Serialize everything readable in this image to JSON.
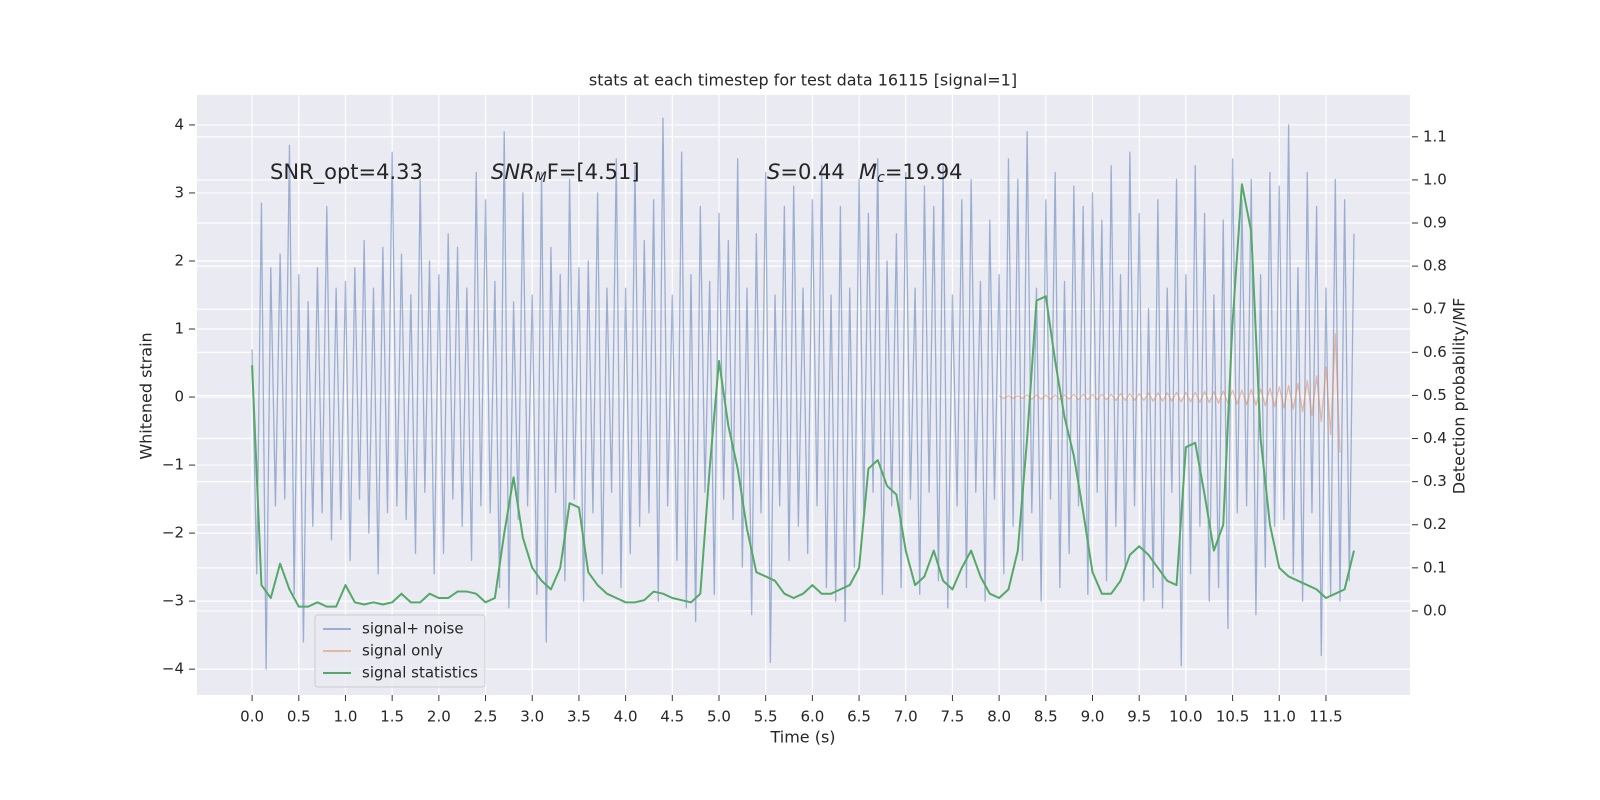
{
  "chart_data": {
    "type": "line",
    "title": "stats at each timestep for test data 16115 [signal=1]",
    "xlabel": "Time (s)",
    "ylabel": "Whitened strain",
    "y2label": "Detection probability/MF",
    "annotations": [
      {
        "text": "SNR_opt=4.33"
      },
      {
        "main": "SNR",
        "sub": "M",
        "rest": "F=[4.51]"
      },
      {
        "main": "S",
        "rest": "=0.44"
      },
      {
        "main": "M",
        "sub": "c",
        "rest": "=19.94"
      }
    ],
    "xlim": [
      -0.59,
      12.4
    ],
    "ylim": [
      -4.38,
      4.44
    ],
    "y2lim": [
      -0.195,
      1.197
    ],
    "grid": true,
    "legend": "lower left",
    "xticks": [
      {
        "value": 0,
        "label": "0.0"
      },
      0.5,
      {
        "value": 1,
        "label": "1.0"
      },
      1.5,
      {
        "value": 2,
        "label": "2.0"
      },
      2.5,
      {
        "value": 3,
        "label": "3.0"
      },
      3.5,
      {
        "value": 4,
        "label": "4.0"
      },
      4.5,
      {
        "value": 5,
        "label": "5.0"
      },
      5.5,
      {
        "value": 6,
        "label": "6.0"
      },
      6.5,
      {
        "value": 7,
        "label": "7.0"
      },
      7.5,
      {
        "value": 8,
        "label": "8.0"
      },
      8.5,
      {
        "value": 9,
        "label": "9.0"
      },
      9.5,
      {
        "value": 10,
        "label": "10.0"
      },
      10.5,
      {
        "value": 11,
        "label": "11.0"
      },
      11.5
    ],
    "yticks": [
      {
        "value": -4,
        "label": "−4"
      },
      {
        "value": -3,
        "label": "−3"
      },
      {
        "value": -2,
        "label": "−2"
      },
      {
        "value": -1,
        "label": "−1"
      },
      0,
      1,
      2,
      3,
      4
    ],
    "y2ticks": [
      {
        "value": 0,
        "label": "0.0"
      },
      0.1,
      0.2,
      0.3,
      0.4,
      0.5,
      0.6,
      0.7,
      0.8,
      0.9,
      {
        "value": 1,
        "label": "1.0"
      },
      1.1
    ],
    "series": [
      {
        "name": "signal+ noise",
        "color": "#4c72b0",
        "alpha": 0.5,
        "x": [
          0,
          0.05,
          0.1,
          0.15,
          0.2,
          0.25,
          0.3,
          0.35,
          0.4,
          0.45,
          0.5,
          0.55,
          0.6,
          0.65,
          0.7,
          0.75,
          0.8,
          0.85,
          0.9,
          0.95,
          1,
          1.05,
          1.1,
          1.15,
          1.2,
          1.25,
          1.3,
          1.35,
          1.4,
          1.45,
          1.5,
          1.55,
          1.6,
          1.65,
          1.7,
          1.75,
          1.8,
          1.85,
          1.9,
          1.95,
          2,
          2.05,
          2.1,
          2.15,
          2.2,
          2.25,
          2.3,
          2.35,
          2.4,
          2.45,
          2.5,
          2.55,
          2.6,
          2.65,
          2.7,
          2.75,
          2.8,
          2.85,
          2.9,
          2.95,
          3,
          3.05,
          3.1,
          3.15,
          3.2,
          3.25,
          3.3,
          3.35,
          3.4,
          3.45,
          3.5,
          3.55,
          3.6,
          3.65,
          3.7,
          3.75,
          3.8,
          3.85,
          3.9,
          3.95,
          4,
          4.05,
          4.1,
          4.15,
          4.2,
          4.25,
          4.3,
          4.35,
          4.4,
          4.45,
          4.5,
          4.55,
          4.6,
          4.65,
          4.7,
          4.75,
          4.8,
          4.85,
          4.9,
          4.95,
          5,
          5.05,
          5.1,
          5.15,
          5.2,
          5.25,
          5.3,
          5.35,
          5.4,
          5.45,
          5.5,
          5.55,
          5.6,
          5.65,
          5.7,
          5.75,
          5.8,
          5.85,
          5.9,
          5.95,
          6,
          6.05,
          6.1,
          6.15,
          6.2,
          6.25,
          6.3,
          6.35,
          6.4,
          6.45,
          6.5,
          6.55,
          6.6,
          6.65,
          6.7,
          6.75,
          6.8,
          6.85,
          6.9,
          6.95,
          7,
          7.05,
          7.1,
          7.15,
          7.2,
          7.25,
          7.3,
          7.35,
          7.4,
          7.45,
          7.5,
          7.55,
          7.6,
          7.65,
          7.7,
          7.75,
          7.8,
          7.85,
          7.9,
          7.95,
          8,
          8.05,
          8.1,
          8.15,
          8.2,
          8.25,
          8.3,
          8.35,
          8.4,
          8.45,
          8.5,
          8.55,
          8.6,
          8.65,
          8.7,
          8.75,
          8.8,
          8.85,
          8.9,
          8.95,
          9,
          9.05,
          9.1,
          9.15,
          9.2,
          9.25,
          9.3,
          9.35,
          9.4,
          9.45,
          9.5,
          9.55,
          9.6,
          9.65,
          9.7,
          9.75,
          9.8,
          9.85,
          9.9,
          9.95,
          10,
          10.05,
          10.1,
          10.15,
          10.2,
          10.25,
          10.3,
          10.35,
          10.4,
          10.45,
          10.5,
          10.55,
          10.6,
          10.65,
          10.7,
          10.75,
          10.8,
          10.85,
          10.9,
          10.95,
          11,
          11.05,
          11.1,
          11.15,
          11.2,
          11.25,
          11.3,
          11.35,
          11.4,
          11.45,
          11.5,
          11.55,
          11.6,
          11.65,
          11.7,
          11.75,
          11.8
        ],
        "values": [
          0.7,
          -2.6,
          2.85,
          -4.0,
          1.9,
          -1.6,
          2.1,
          -1.5,
          3.7,
          -2.9,
          1.8,
          -3.6,
          1.4,
          -1.9,
          1.9,
          -1.7,
          2.8,
          -2.1,
          1.6,
          -1.8,
          1.7,
          -2.4,
          1.9,
          -1.5,
          2.3,
          -2.0,
          1.6,
          -2.6,
          2.2,
          -1.7,
          3.6,
          -1.6,
          2.1,
          -1.8,
          1.5,
          -2.3,
          3.2,
          -1.4,
          2.0,
          -2.6,
          1.8,
          -2.3,
          2.4,
          -1.5,
          2.2,
          -1.9,
          1.6,
          -2.4,
          3.3,
          -1.6,
          2.9,
          -1.7,
          1.7,
          -2.8,
          3.9,
          -3.1,
          1.4,
          -1.8,
          3.0,
          -1.6,
          1.5,
          -2.9,
          3.3,
          -3.6,
          2.2,
          -1.4,
          1.8,
          -2.7,
          3.2,
          -1.5,
          1.9,
          -3.0,
          2.0,
          -1.7,
          3.0,
          -2.6,
          1.6,
          -1.4,
          3.5,
          -2.8,
          1.6,
          -2.3,
          3.4,
          -1.9,
          2.3,
          -1.7,
          2.9,
          -3.0,
          4.1,
          -1.6,
          1.5,
          -2.4,
          3.6,
          -3.1,
          1.8,
          -3.3,
          2.8,
          -1.4,
          1.7,
          -2.9,
          2.7,
          -1.5,
          2.3,
          -1.8,
          3.5,
          -2.5,
          1.6,
          -3.2,
          2.4,
          -1.7,
          3.3,
          -3.9,
          1.5,
          -1.6,
          2.8,
          -2.4,
          3.1,
          -1.9,
          1.6,
          -2.3,
          2.9,
          -1.6,
          3.4,
          -2.8,
          1.5,
          -3.0,
          2.8,
          -3.3,
          1.6,
          -2.5,
          3.2,
          -1.7,
          2.7,
          -1.4,
          3.5,
          -2.9,
          2.0,
          -1.6,
          2.4,
          -2.8,
          3.3,
          -1.5,
          1.6,
          -2.9,
          3.1,
          -1.4,
          2.8,
          -2.7,
          3.4,
          -3.1,
          1.5,
          -1.6,
          2.9,
          -2.8,
          3.2,
          -1.4,
          1.7,
          -3.0,
          2.6,
          -1.5,
          1.8,
          -2.6,
          3.5,
          -1.9,
          3.2,
          -2.4,
          3.9,
          -1.7,
          1.6,
          -3.0,
          2.9,
          -1.5,
          3.3,
          -2.8,
          1.7,
          -2.3,
          3.1,
          -1.6,
          2.8,
          -2.9,
          3.0,
          -1.4,
          2.6,
          -2.7,
          3.4,
          -1.9,
          1.8,
          -2.5,
          3.6,
          -1.6,
          2.7,
          -3.0,
          1.3,
          -2.8,
          2.9,
          -3.1,
          1.6,
          -1.4,
          3.2,
          -3.95,
          1.8,
          -2.6,
          3.4,
          -1.9,
          2.7,
          -3.0,
          1.5,
          -2.8,
          2.6,
          -3.4,
          3.5,
          -1.7,
          2.9,
          -1.6,
          3.2,
          -3.2,
          1.8,
          -2.5,
          3.3,
          -1.9,
          3.1,
          -1.8,
          4.0,
          -2.6,
          1.9,
          -3.0,
          3.3,
          -1.7,
          2.8,
          -3.8,
          1.6,
          -2.9,
          3.2,
          -3.0,
          2.9,
          -2.7,
          2.4
        ]
      },
      {
        "name": "signal only",
        "color": "#dd8452",
        "alpha": 0.5,
        "x": [
          8,
          8.05,
          8.1,
          8.15,
          8.2,
          8.25,
          8.3,
          8.35,
          8.4,
          8.45,
          8.5,
          8.55,
          8.6,
          8.65,
          8.7,
          8.75,
          8.8,
          8.85,
          8.9,
          8.95,
          9,
          9.05,
          9.1,
          9.15,
          9.2,
          9.25,
          9.3,
          9.35,
          9.4,
          9.45,
          9.5,
          9.55,
          9.6,
          9.65,
          9.7,
          9.75,
          9.8,
          9.85,
          9.9,
          9.95,
          10,
          10.05,
          10.1,
          10.15,
          10.2,
          10.25,
          10.3,
          10.35,
          10.4,
          10.45,
          10.5,
          10.55,
          10.6,
          10.65,
          10.7,
          10.75,
          10.8,
          10.85,
          10.9,
          10.95,
          11,
          11.05,
          11.1,
          11.15,
          11.2,
          11.25,
          11.3,
          11.35,
          11.4,
          11.45,
          11.5,
          11.55,
          11.6,
          11.65
        ],
        "values": [
          0.02,
          -0.02,
          0.02,
          -0.02,
          0.02,
          -0.02,
          0.03,
          -0.03,
          0.03,
          -0.03,
          0.03,
          -0.03,
          0.03,
          -0.03,
          0.03,
          -0.03,
          0.04,
          -0.04,
          0.04,
          -0.04,
          0.04,
          -0.04,
          0.04,
          -0.04,
          0.04,
          -0.05,
          0.05,
          -0.05,
          0.05,
          -0.05,
          0.05,
          -0.05,
          0.06,
          -0.06,
          0.06,
          -0.06,
          0.06,
          -0.06,
          0.07,
          -0.07,
          0.07,
          -0.07,
          0.07,
          -0.08,
          0.08,
          -0.08,
          0.08,
          -0.09,
          0.09,
          -0.09,
          0.1,
          -0.1,
          0.1,
          -0.11,
          0.11,
          -0.12,
          0.12,
          -0.13,
          0.13,
          -0.14,
          0.15,
          -0.16,
          0.17,
          -0.18,
          0.2,
          -0.22,
          0.24,
          -0.27,
          0.31,
          -0.36,
          0.44,
          -0.55,
          0.93,
          -0.82
        ]
      },
      {
        "name": "signal statistics",
        "color": "#55a868",
        "alpha": 1,
        "axis": "y2",
        "x": [
          0,
          0.1,
          0.2,
          0.3,
          0.4,
          0.5,
          0.6,
          0.7,
          0.8,
          0.9,
          1,
          1.1,
          1.2,
          1.3,
          1.4,
          1.5,
          1.6,
          1.7,
          1.8,
          1.9,
          2,
          2.1,
          2.2,
          2.3,
          2.4,
          2.5,
          2.6,
          2.7,
          2.8,
          2.9,
          3,
          3.1,
          3.2,
          3.3,
          3.4,
          3.5,
          3.6,
          3.7,
          3.8,
          3.9,
          4,
          4.1,
          4.2,
          4.3,
          4.4,
          4.5,
          4.6,
          4.7,
          4.8,
          4.9,
          5,
          5.1,
          5.2,
          5.3,
          5.4,
          5.5,
          5.6,
          5.7,
          5.8,
          5.9,
          6,
          6.1,
          6.2,
          6.3,
          6.4,
          6.5,
          6.6,
          6.7,
          6.8,
          6.9,
          7,
          7.1,
          7.2,
          7.3,
          7.4,
          7.5,
          7.6,
          7.7,
          7.8,
          7.9,
          8,
          8.1,
          8.2,
          8.3,
          8.4,
          8.5,
          8.6,
          8.7,
          8.8,
          8.9,
          9,
          9.1,
          9.2,
          9.3,
          9.4,
          9.5,
          9.6,
          9.7,
          9.8,
          9.9,
          10,
          10.1,
          10.2,
          10.3,
          10.4,
          10.5,
          10.6,
          10.7,
          10.8,
          10.9,
          11,
          11.1,
          11.2,
          11.3,
          11.4,
          11.5,
          11.6,
          11.7,
          11.8
        ],
        "values": [
          0.57,
          0.06,
          0.03,
          0.11,
          0.05,
          0.01,
          0.01,
          0.02,
          0.01,
          0.01,
          0.06,
          0.02,
          0.015,
          0.02,
          0.015,
          0.02,
          0.04,
          0.02,
          0.02,
          0.04,
          0.03,
          0.03,
          0.045,
          0.045,
          0.04,
          0.02,
          0.03,
          0.18,
          0.31,
          0.17,
          0.1,
          0.07,
          0.05,
          0.1,
          0.25,
          0.24,
          0.09,
          0.06,
          0.04,
          0.03,
          0.02,
          0.02,
          0.025,
          0.045,
          0.04,
          0.03,
          0.025,
          0.02,
          0.04,
          0.33,
          0.58,
          0.43,
          0.33,
          0.19,
          0.09,
          0.08,
          0.07,
          0.04,
          0.03,
          0.04,
          0.06,
          0.04,
          0.04,
          0.05,
          0.06,
          0.1,
          0.33,
          0.35,
          0.29,
          0.27,
          0.14,
          0.06,
          0.08,
          0.14,
          0.07,
          0.05,
          0.1,
          0.14,
          0.08,
          0.04,
          0.03,
          0.05,
          0.14,
          0.4,
          0.72,
          0.73,
          0.58,
          0.45,
          0.36,
          0.23,
          0.09,
          0.04,
          0.04,
          0.07,
          0.13,
          0.15,
          0.13,
          0.1,
          0.07,
          0.06,
          0.38,
          0.39,
          0.27,
          0.14,
          0.2,
          0.67,
          0.99,
          0.88,
          0.4,
          0.2,
          0.1,
          0.08,
          0.07,
          0.06,
          0.05,
          0.03,
          0.04,
          0.05,
          0.14
        ]
      }
    ]
  }
}
